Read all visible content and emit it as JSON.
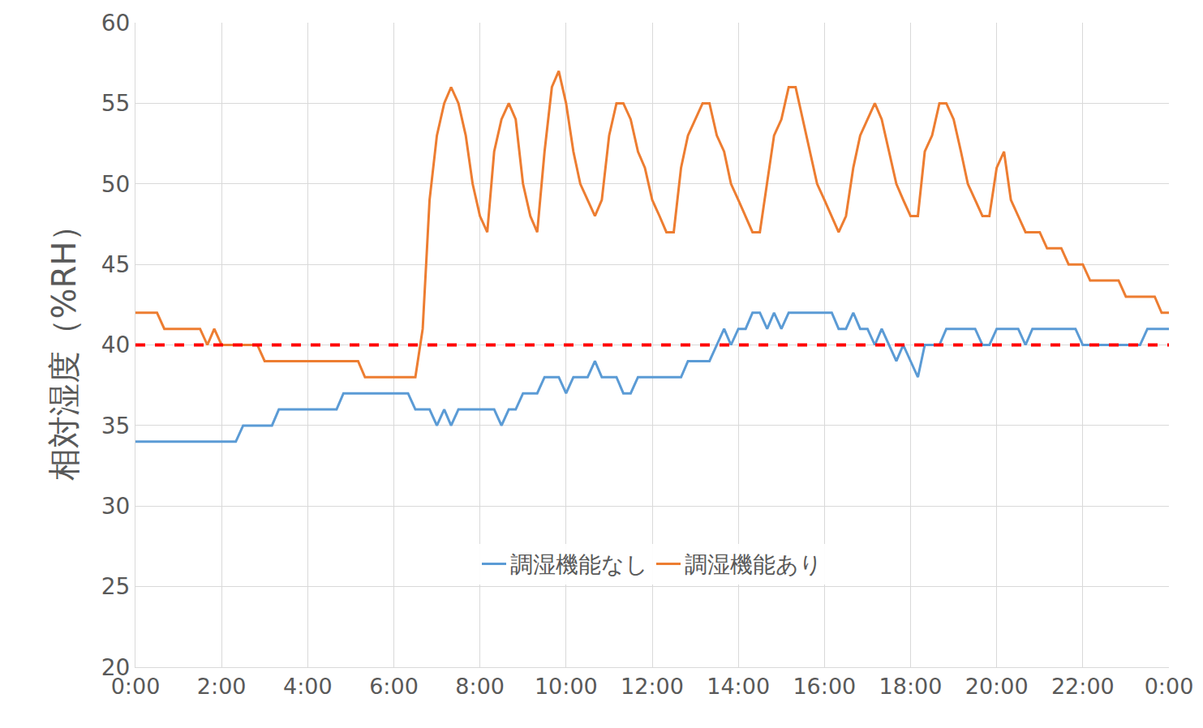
{
  "chart_data": {
    "type": "line",
    "y_label": "相対湿度（%RH）",
    "xlim": [
      0,
      24
    ],
    "xticks": [
      {
        "value": 0,
        "label": "0:00"
      },
      {
        "value": 2,
        "label": "2:00"
      },
      {
        "value": 4,
        "label": "4:00"
      },
      {
        "value": 6,
        "label": "6:00"
      },
      {
        "value": 8,
        "label": "8:00"
      },
      {
        "value": 10,
        "label": "10:00"
      },
      {
        "value": 12,
        "label": "12:00"
      },
      {
        "value": 14,
        "label": "14:00"
      },
      {
        "value": 16,
        "label": "16:00"
      },
      {
        "value": 18,
        "label": "18:00"
      },
      {
        "value": 20,
        "label": "20:00"
      },
      {
        "value": 22,
        "label": "22:00"
      },
      {
        "value": 24,
        "label": "0:00"
      }
    ],
    "ylim": [
      20,
      60
    ],
    "yticks": [
      20,
      25,
      30,
      35,
      40,
      45,
      50,
      55,
      60
    ],
    "grid": true,
    "legend": "bottom",
    "hline": {
      "value": 40,
      "color": "#ff0000",
      "line_style": "dashed"
    },
    "series": [
      {
        "name": "調湿機能なし",
        "color": "#5b9bd5",
        "x": [
          0,
          2.33,
          2.5,
          3.17,
          3.33,
          4.67,
          4.83,
          6.33,
          6.5,
          6.83,
          7.0,
          7.17,
          7.33,
          7.5,
          8.33,
          8.5,
          8.67,
          8.83,
          9.0,
          9.33,
          9.5,
          9.83,
          10.0,
          10.17,
          10.5,
          10.67,
          10.83,
          11.17,
          11.33,
          11.5,
          11.67,
          12.67,
          12.83,
          13.33,
          13.5,
          13.67,
          13.83,
          14.0,
          14.17,
          14.33,
          14.5,
          14.67,
          14.83,
          15.0,
          15.17,
          16.17,
          16.33,
          16.5,
          16.67,
          16.83,
          17.0,
          17.17,
          17.33,
          17.5,
          17.67,
          17.83,
          18.17,
          18.33,
          18.67,
          18.83,
          19.5,
          19.67,
          19.83,
          20.0,
          20.5,
          20.67,
          20.83,
          21.83,
          22.0,
          22.5,
          22.67,
          23.33,
          23.5,
          24
        ],
        "values": [
          34,
          34,
          35,
          35,
          36,
          36,
          37,
          37,
          36,
          36,
          35,
          36,
          35,
          36,
          36,
          35,
          36,
          36,
          37,
          37,
          38,
          38,
          37,
          38,
          38,
          39,
          38,
          38,
          37,
          37,
          38,
          38,
          39,
          39,
          40,
          41,
          40,
          41,
          41,
          42,
          42,
          41,
          42,
          41,
          42,
          42,
          41,
          41,
          42,
          41,
          41,
          40,
          41,
          40,
          39,
          40,
          38,
          40,
          40,
          41,
          41,
          40,
          40,
          41,
          41,
          40,
          41,
          41,
          40,
          40,
          40,
          40,
          41,
          41
        ]
      },
      {
        "name": "調湿機能あり",
        "color": "#ed7d31",
        "x": [
          0,
          0.5,
          0.67,
          1.5,
          1.67,
          1.83,
          2.0,
          2.83,
          3.0,
          5.17,
          5.33,
          6.5,
          6.67,
          6.83,
          7.0,
          7.17,
          7.33,
          7.5,
          7.67,
          7.83,
          8.0,
          8.17,
          8.33,
          8.5,
          8.67,
          8.83,
          9.0,
          9.17,
          9.33,
          9.5,
          9.67,
          9.83,
          10.0,
          10.17,
          10.33,
          10.5,
          10.67,
          10.83,
          11.0,
          11.17,
          11.33,
          11.5,
          11.67,
          11.83,
          12.0,
          12.17,
          12.33,
          12.5,
          12.67,
          12.83,
          13.0,
          13.17,
          13.33,
          13.5,
          13.67,
          13.83,
          14.0,
          14.17,
          14.33,
          14.5,
          14.67,
          14.83,
          15.0,
          15.17,
          15.33,
          15.5,
          15.67,
          15.83,
          16.0,
          16.17,
          16.33,
          16.5,
          16.67,
          16.83,
          17.0,
          17.17,
          17.33,
          17.5,
          17.67,
          17.83,
          18.0,
          18.17,
          18.33,
          18.5,
          18.67,
          18.83,
          19.0,
          19.17,
          19.33,
          19.5,
          19.67,
          19.83,
          20.0,
          20.17,
          20.33,
          20.5,
          20.67,
          21.0,
          21.17,
          21.5,
          21.67,
          22.0,
          22.17,
          22.83,
          23.0,
          23.67,
          23.83,
          24
        ],
        "values": [
          42,
          42,
          41,
          41,
          40,
          41,
          40,
          40,
          39,
          39,
          38,
          38,
          41,
          49,
          53,
          55,
          56,
          55,
          53,
          50,
          48,
          47,
          52,
          54,
          55,
          54,
          50,
          48,
          47,
          52,
          56,
          57,
          55,
          52,
          50,
          49,
          48,
          49,
          53,
          55,
          55,
          54,
          52,
          51,
          49,
          48,
          47,
          47,
          51,
          53,
          54,
          55,
          55,
          53,
          52,
          50,
          49,
          48,
          47,
          47,
          50,
          53,
          54,
          56,
          56,
          54,
          52,
          50,
          49,
          48,
          47,
          48,
          51,
          53,
          54,
          55,
          54,
          52,
          50,
          49,
          48,
          48,
          52,
          53,
          55,
          55,
          54,
          52,
          50,
          49,
          48,
          48,
          51,
          52,
          49,
          48,
          47,
          47,
          46,
          46,
          45,
          45,
          44,
          44,
          43,
          43,
          42,
          42
        ]
      }
    ]
  }
}
